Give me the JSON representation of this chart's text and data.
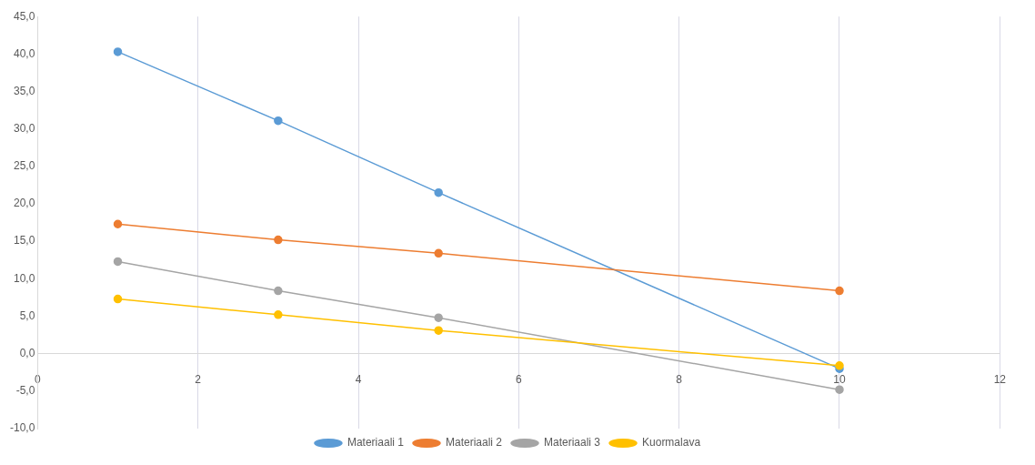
{
  "chart_data": {
    "type": "line",
    "x": [
      1,
      3,
      5,
      10
    ],
    "series": [
      {
        "name": "Materiaali 1",
        "color": "#5b9bd5",
        "values": [
          40.3,
          31.1,
          21.5,
          -2.0
        ]
      },
      {
        "name": "Materiaali 2",
        "color": "#ed7d31",
        "values": [
          17.3,
          15.2,
          13.4,
          8.4
        ]
      },
      {
        "name": "Materiaali 3",
        "color": "#a5a5a5",
        "values": [
          12.3,
          8.4,
          4.8,
          -4.8
        ]
      },
      {
        "name": "Kuormalava",
        "color": "#ffc000",
        "values": [
          7.3,
          5.2,
          3.1,
          -1.6
        ]
      }
    ],
    "xlim": [
      0,
      12
    ],
    "xticks": [
      0,
      2,
      4,
      6,
      8,
      10,
      12
    ],
    "ylim": [
      -10,
      45
    ],
    "yticks": [
      {
        "value": -10,
        "label": "-10,0"
      },
      {
        "value": -5,
        "label": "-5,0"
      },
      {
        "value": 0,
        "label": "0,0"
      },
      {
        "value": 5,
        "label": "5,0"
      },
      {
        "value": 10,
        "label": "10,0"
      },
      {
        "value": 15,
        "label": "15,0"
      },
      {
        "value": 20,
        "label": "20,0"
      },
      {
        "value": 25,
        "label": "25,0"
      },
      {
        "value": 30,
        "label": "30,0"
      },
      {
        "value": 35,
        "label": "35,0"
      },
      {
        "value": 40,
        "label": "40,0"
      },
      {
        "value": 45,
        "label": "45,0"
      }
    ],
    "grid": "x",
    "legend": "bottom",
    "marker": "circle",
    "line_style": "solid"
  }
}
